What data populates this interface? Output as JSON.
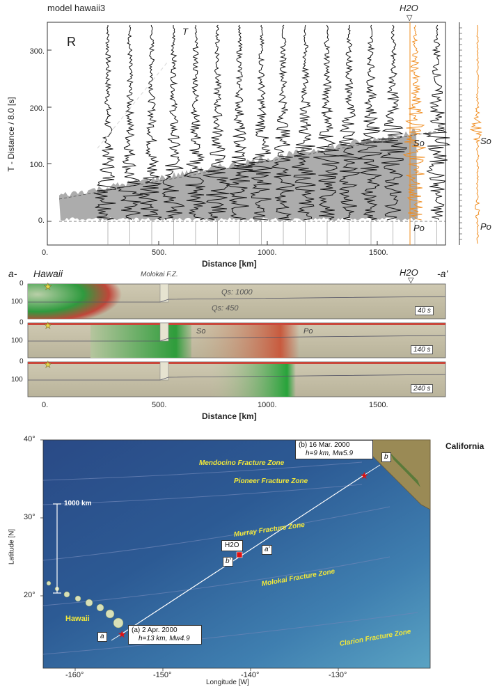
{
  "top_panel": {
    "model_label": "model hawaii3",
    "panel_tag": "R",
    "t_phase": "T",
    "station": "H2O",
    "ylabel": "T - Distance / 8.0 [s]",
    "xlabel": "Distance  [km]",
    "yticks": [
      "300.",
      "200.",
      "100.",
      "0."
    ],
    "xticks": [
      "0.",
      "500.",
      "1000.",
      "1500."
    ],
    "phase_so": "So",
    "phase_po": "Po",
    "side_so": "So",
    "side_po": "Po",
    "colors": {
      "trace": "#111111",
      "highlight": "#f08c1e"
    }
  },
  "section": {
    "left_end": "a-",
    "right_end": "-a'",
    "origin": "Hawaii",
    "fracture": "Molokai F.Z.",
    "station": "H2O",
    "qs_upper": "Qs: 1000",
    "qs_lower": "Qs: 450",
    "depth_ticks": [
      "0",
      "100"
    ],
    "xticks": [
      "0.",
      "500.",
      "1000.",
      "1500."
    ],
    "xlabel": "Distance  [km]",
    "snapshots": [
      {
        "time": "40 s"
      },
      {
        "time": "140 s",
        "so": "So",
        "po": "Po"
      },
      {
        "time": "240 s"
      }
    ]
  },
  "map": {
    "lat_ticks": [
      "40°",
      "30°",
      "20°"
    ],
    "lon_ticks": [
      "-160°",
      "-150°",
      "-140°",
      "-130°"
    ],
    "ylabel": "Latitude [N]",
    "xlabel": "Longitude [W]",
    "scale": "1000 km",
    "region": "California",
    "origin": "Hawaii",
    "station": "H2O",
    "zones": [
      "Mendocino Fracture Zone",
      "Pioneer Fracture Zone",
      "Murray Fracture Zone",
      "Molokai Fracture Zone",
      "Clarion Fracture Zone"
    ],
    "event_a_line1": "(a) 2 Apr. 2000",
    "event_a_line2": "h=13 km, Mw4.9",
    "event_b_line1": "(b) 16 Mar. 2000",
    "event_b_line2": "h=9 km, Mw5.9",
    "markers": [
      "a",
      "a'",
      "b",
      "b'"
    ],
    "colors": {
      "ocean": "#1f3f78",
      "land": "#9a8a55",
      "label": "#f2e83a",
      "event": "#e01010"
    }
  }
}
